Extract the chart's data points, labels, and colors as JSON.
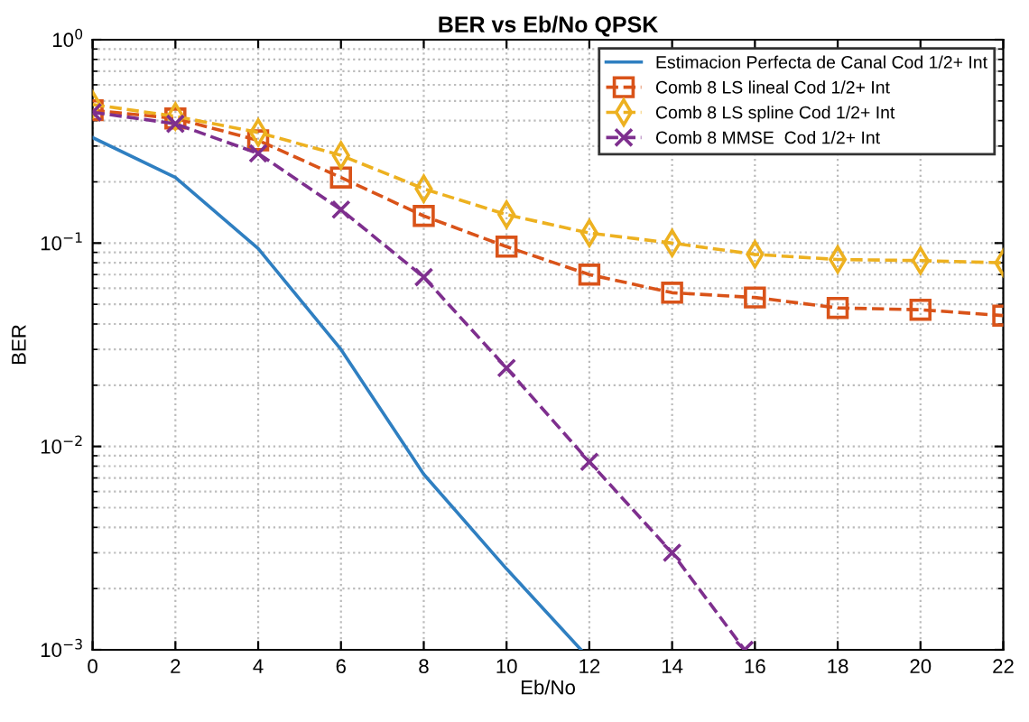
{
  "chart_data": {
    "type": "line",
    "title": "BER vs Eb/No QPSK",
    "xlabel": "Eb/No",
    "ylabel": "BER",
    "log": "y",
    "grid": true,
    "legend": "top right",
    "line_style": "dashed",
    "xlim": [
      0,
      22
    ],
    "xticks": [
      0,
      2,
      4,
      6,
      8,
      10,
      12,
      14,
      16,
      18,
      20,
      22
    ],
    "ylim": [
      0.001,
      1
    ],
    "yticks": [
      {
        "value": 0.001,
        "label": "10$^{−3}$"
      },
      {
        "value": 0.01,
        "label": "10$^{−2}$"
      },
      {
        "value": 0.1,
        "label": "10$^{−1}$"
      },
      {
        "value": 1,
        "label": "10$^{0}$"
      }
    ],
    "series": [
      {
        "name": "Estimacion Perfecta de Canal Cod 1/2+ Int",
        "color": "#2f7fc1",
        "line_style": "solid",
        "marker": "none",
        "x": [
          0,
          2,
          4,
          6,
          8,
          10,
          11.8
        ],
        "values": [
          0.33,
          0.21,
          0.094,
          0.03,
          0.0073,
          0.0025,
          0.001
        ]
      },
      {
        "name": "Comb 8 LS lineal Cod 1/2+ Int",
        "color": "#d95319",
        "marker": "square",
        "x": [
          0,
          2,
          4,
          6,
          8,
          10,
          12,
          14,
          16,
          18,
          20,
          22
        ],
        "values": [
          0.45,
          0.41,
          0.32,
          0.21,
          0.136,
          0.096,
          0.07,
          0.057,
          0.054,
          0.048,
          0.047,
          0.044
        ]
      },
      {
        "name": "Comb 8 LS spline Cod 1/2+ Int",
        "color": "#edb120",
        "marker": "diamond",
        "x": [
          0,
          2,
          4,
          6,
          8,
          10,
          12,
          14,
          16,
          18,
          20,
          22
        ],
        "values": [
          0.48,
          0.42,
          0.35,
          0.27,
          0.185,
          0.138,
          0.112,
          0.1,
          0.088,
          0.083,
          0.082,
          0.08
        ]
      },
      {
        "name": "Comb 8 MMSE  Cod 1/2+ Int",
        "color": "#7e2f8e",
        "marker": "cross",
        "x": [
          0,
          2,
          4,
          6,
          8,
          10,
          12,
          14,
          15.75
        ],
        "values": [
          0.44,
          0.386,
          0.276,
          0.146,
          0.068,
          0.0243,
          0.0084,
          0.003,
          0.001
        ]
      }
    ]
  }
}
